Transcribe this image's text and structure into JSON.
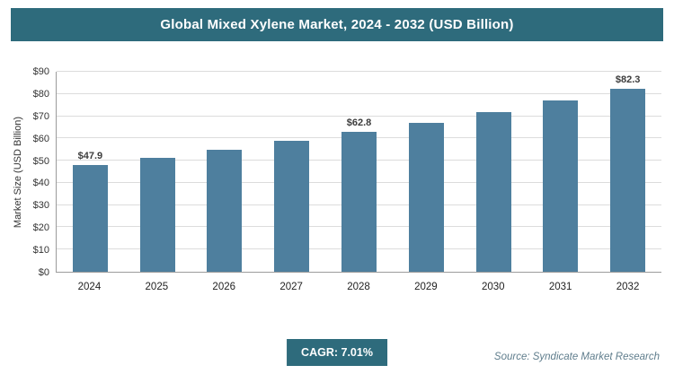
{
  "header": {
    "title": "Global Mixed Xylene Market, 2024 - 2032 (USD Billion)"
  },
  "chart_data": {
    "type": "bar",
    "title": "Global Mixed Xylene Market, 2024 - 2032 (USD Billion)",
    "categories": [
      "2024",
      "2025",
      "2026",
      "2027",
      "2028",
      "2029",
      "2030",
      "2031",
      "2032"
    ],
    "values": [
      47.9,
      51.3,
      54.9,
      58.8,
      62.8,
      67.2,
      71.9,
      77.0,
      82.3
    ],
    "value_labels": [
      "$47.9",
      "",
      "",
      "",
      "$62.8",
      "",
      "",
      "",
      "$82.3"
    ],
    "xlabel": "",
    "ylabel": "Market Size (USD Billion)",
    "ylim": [
      0,
      90
    ],
    "ytick_step": 10,
    "ytick_labels": [
      "$0",
      "$10",
      "$20",
      "$30",
      "$40",
      "$50",
      "$60",
      "$70",
      "$80",
      "$90"
    ],
    "grid": true,
    "legend_position": "none",
    "bar_color": "#4e7f9e"
  },
  "footer": {
    "cagr_label": "CAGR: 7.01%",
    "source": "Source: Syndicate Market Research"
  },
  "colors": {
    "header_bg": "#2e6b7c",
    "accent": "#2e6b7c",
    "bar": "#4e7f9e",
    "gridline": "#dcdcdc"
  }
}
